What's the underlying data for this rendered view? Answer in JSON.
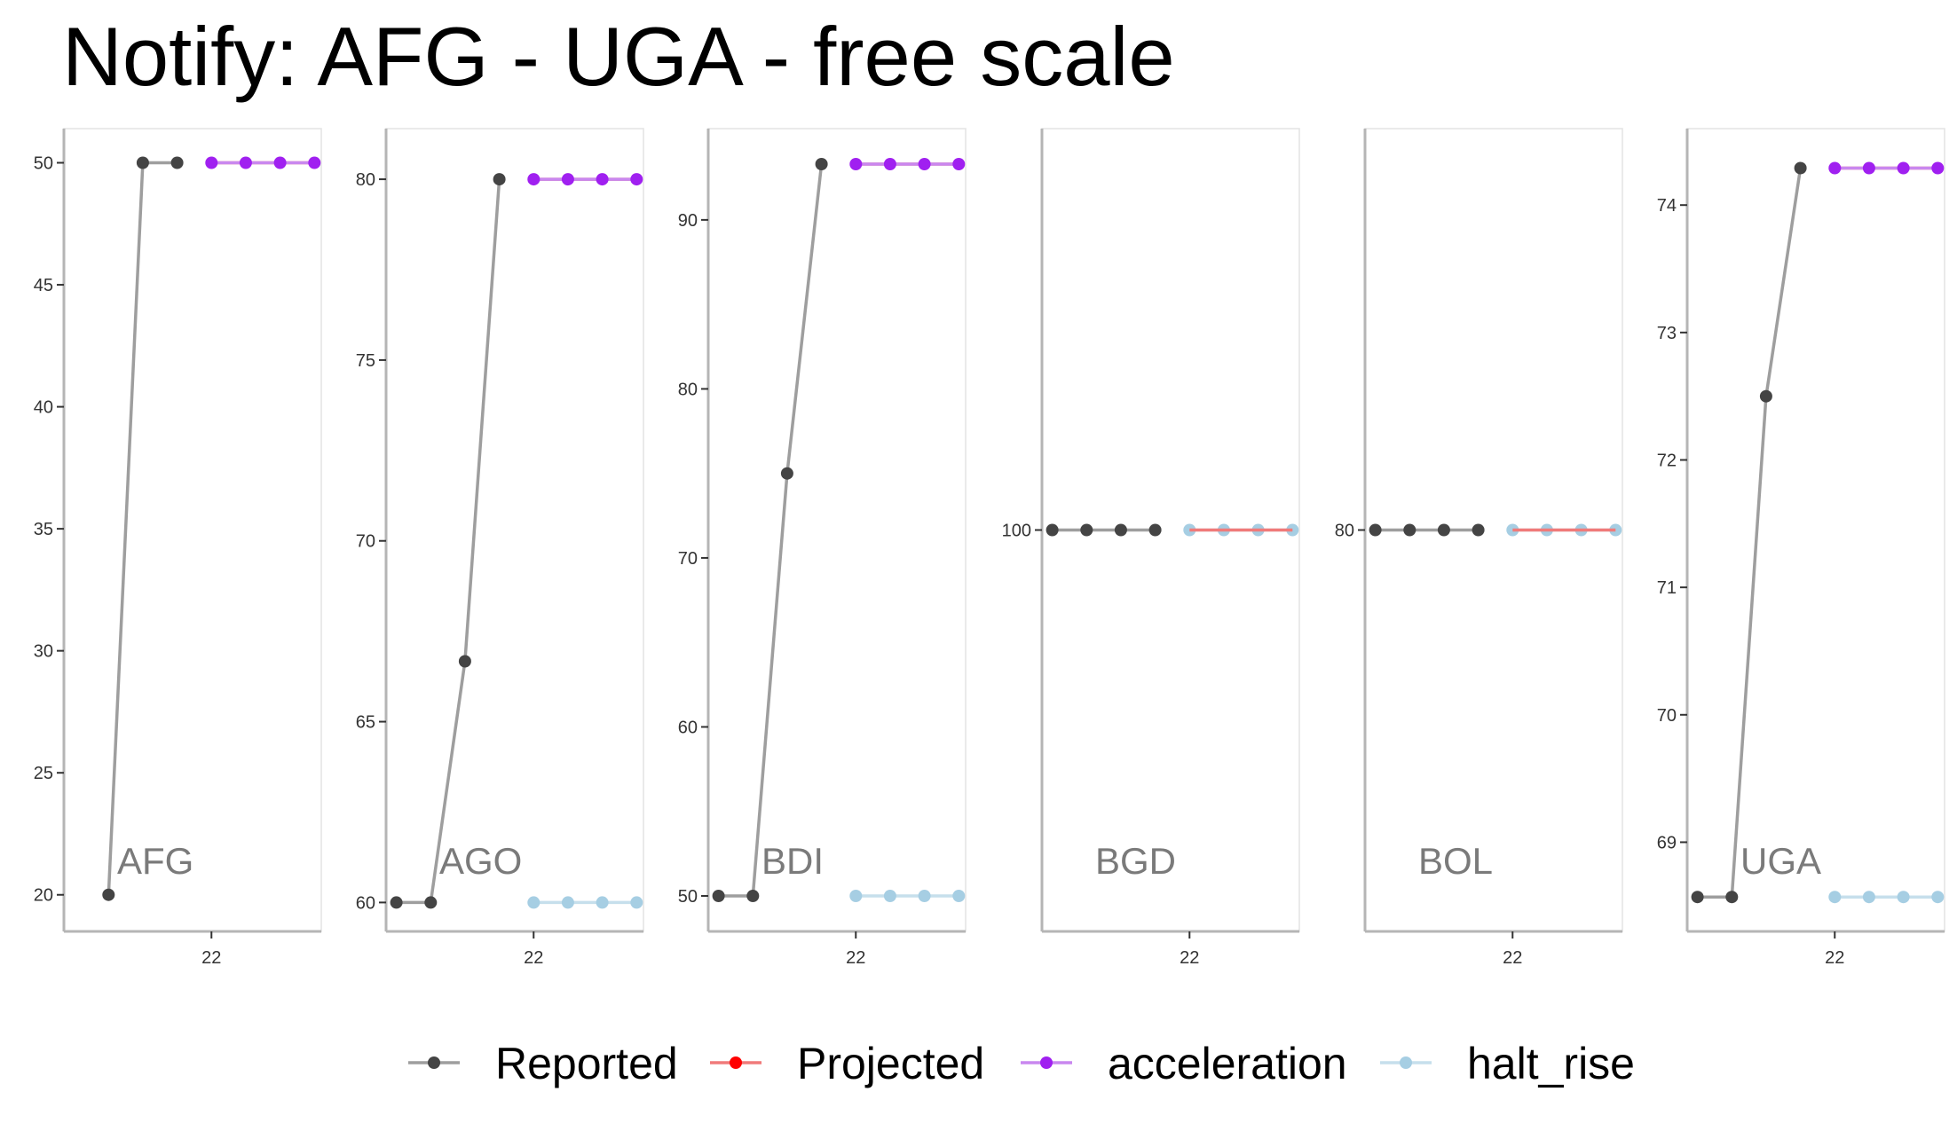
{
  "chart_data": {
    "type": "line",
    "title": "Notify: AFG - UGA - free scale",
    "xlabel": "",
    "ylabel": "",
    "x_tick_label": "22",
    "legend_position": "bottom",
    "grid": false,
    "series_styles": [
      {
        "name": "Reported",
        "color": "#444444",
        "line_color": "#9e9e9e"
      },
      {
        "name": "Projected",
        "color": "#ff0000",
        "line_color": "#f07a7a"
      },
      {
        "name": "acceleration",
        "color": "#a020f0",
        "line_color": "#c987ef"
      },
      {
        "name": "halt_rise",
        "color": "#a6cee3",
        "line_color": "#c6dfec"
      }
    ],
    "panels": [
      {
        "label": "AFG",
        "ylim": [
          18.5,
          51.4
        ],
        "yticks": [
          20,
          25,
          30,
          35,
          40,
          45,
          50
        ],
        "series": [
          {
            "name": "Reported",
            "x": [
              -3,
              -2,
              -1
            ],
            "values": [
              20,
              50,
              50
            ]
          },
          {
            "name": "Projected",
            "x": [
              0,
              1,
              2,
              3
            ],
            "values": [
              50,
              50,
              50,
              50
            ]
          },
          {
            "name": "acceleration",
            "x": [
              0,
              1,
              2,
              3
            ],
            "values": [
              50,
              50,
              50,
              50
            ]
          }
        ]
      },
      {
        "label": "AGO",
        "ylim": [
          59.2,
          81.4
        ],
        "yticks": [
          60,
          65,
          70,
          75,
          80
        ],
        "series": [
          {
            "name": "Reported",
            "x": [
              -4,
              -3,
              -2,
              -1
            ],
            "values": [
              60,
              60,
              66.67,
              80
            ]
          },
          {
            "name": "Projected",
            "x": [
              0,
              1,
              2,
              3
            ],
            "values": [
              80,
              80,
              80,
              80
            ]
          },
          {
            "name": "acceleration",
            "x": [
              0,
              1,
              2,
              3
            ],
            "values": [
              80,
              80,
              80,
              80
            ]
          },
          {
            "name": "halt_rise",
            "x": [
              0,
              1,
              2,
              3
            ],
            "values": [
              60,
              60,
              60,
              60
            ]
          }
        ]
      },
      {
        "label": "BDI",
        "ylim": [
          47.9,
          95.4
        ],
        "yticks": [
          50,
          60,
          70,
          80,
          90
        ],
        "series": [
          {
            "name": "Reported",
            "x": [
              -4,
              -3,
              -2,
              -1
            ],
            "values": [
              50,
              50,
              75,
              93.3
            ]
          },
          {
            "name": "Projected",
            "x": [
              0,
              1,
              2,
              3
            ],
            "values": [
              93.3,
              93.3,
              93.3,
              93.3
            ]
          },
          {
            "name": "acceleration",
            "x": [
              0,
              1,
              2,
              3
            ],
            "values": [
              93.3,
              93.3,
              93.3,
              93.3
            ]
          },
          {
            "name": "halt_rise",
            "x": [
              0,
              1,
              2,
              3
            ],
            "values": [
              50,
              50,
              50,
              50
            ]
          }
        ]
      },
      {
        "label": "BGD",
        "ylim": [
          99,
          101
        ],
        "yticks": [
          100
        ],
        "series": [
          {
            "name": "Reported",
            "x": [
              -4,
              -3,
              -2,
              -1
            ],
            "values": [
              100,
              100,
              100,
              100
            ]
          },
          {
            "name": "Projected",
            "x": [
              0,
              1,
              2,
              3
            ],
            "values": [
              100,
              100,
              100,
              100
            ]
          },
          {
            "name": "halt_rise",
            "x": [
              0,
              1,
              2,
              3
            ],
            "values": [
              100,
              100,
              100,
              100
            ]
          }
        ]
      },
      {
        "label": "BOL",
        "ylim": [
          79,
          81
        ],
        "yticks": [
          80
        ],
        "series": [
          {
            "name": "Reported",
            "x": [
              -4,
              -3,
              -2,
              -1
            ],
            "values": [
              80,
              80,
              80,
              80
            ]
          },
          {
            "name": "Projected",
            "x": [
              0,
              1,
              2,
              3
            ],
            "values": [
              80,
              80,
              80,
              80
            ]
          },
          {
            "name": "halt_rise",
            "x": [
              0,
              1,
              2,
              3
            ],
            "values": [
              80,
              80,
              80,
              80
            ]
          }
        ]
      },
      {
        "label": "UGA",
        "ylim": [
          68.3,
          74.6
        ],
        "yticks": [
          69,
          70,
          71,
          72,
          73,
          74
        ],
        "series": [
          {
            "name": "Reported",
            "x": [
              -4,
              -3,
              -2,
              -1
            ],
            "values": [
              68.57,
              68.57,
              72.5,
              74.29
            ]
          },
          {
            "name": "Projected",
            "x": [
              0,
              1,
              2,
              3
            ],
            "values": [
              74.29,
              74.29,
              74.29,
              74.29
            ]
          },
          {
            "name": "acceleration",
            "x": [
              0,
              1,
              2,
              3
            ],
            "values": [
              74.29,
              74.29,
              74.29,
              74.29
            ]
          },
          {
            "name": "halt_rise",
            "x": [
              0,
              1,
              2,
              3
            ],
            "values": [
              68.57,
              68.57,
              68.57,
              68.57
            ]
          }
        ]
      }
    ]
  }
}
